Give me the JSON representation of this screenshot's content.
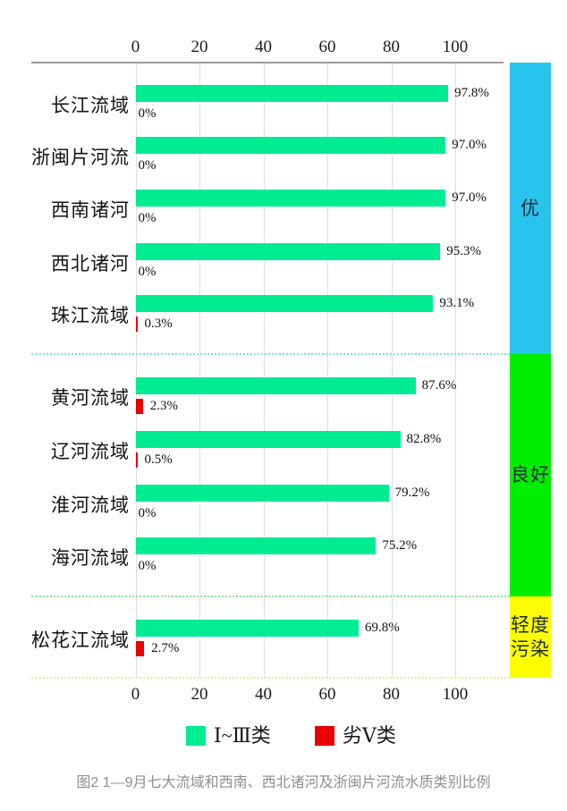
{
  "figure": {
    "caption": "图2  1—9月七大流域和西南、西北诸河及浙闽片河流水质类别比例"
  },
  "chart_data": {
    "type": "bar",
    "orientation": "horizontal",
    "title": "",
    "x_axis": {
      "ticks": [
        "0",
        "20",
        "40",
        "60",
        "80",
        "100"
      ],
      "tick_values": [
        0,
        20,
        40,
        60,
        80,
        100
      ],
      "range": [
        0,
        100
      ],
      "position": "top-and-bottom",
      "grid": true
    },
    "categories": [
      "长江流域",
      "浙闽片河流",
      "西南诸河",
      "西北诸河",
      "珠江流域",
      "黄河流域",
      "辽河流域",
      "淮河流域",
      "海河流域",
      "松花江流域"
    ],
    "series": [
      {
        "name": "Ⅰ~Ⅲ类",
        "color": "#00ec92",
        "values": [
          97.8,
          97.0,
          97.0,
          95.3,
          93.1,
          87.6,
          82.8,
          79.2,
          75.2,
          69.8
        ],
        "labels": [
          "97.8%",
          "97.0%",
          "97.0%",
          "95.3%",
          "93.1%",
          "87.6%",
          "82.8%",
          "79.2%",
          "75.2%",
          "69.8%"
        ]
      },
      {
        "name": "劣Ⅴ类",
        "color": "#e90000",
        "values": [
          0,
          0,
          0,
          0,
          0.3,
          2.3,
          0.5,
          0,
          0,
          2.7
        ],
        "labels": [
          "0%",
          "0%",
          "0%",
          "0%",
          "0.3%",
          "2.3%",
          "0.5%",
          "0%",
          "0%",
          "2.7%"
        ]
      }
    ],
    "quality_bands": [
      {
        "label": "优",
        "color": "#29c4ee",
        "separator_color": "#84dcec",
        "row_start": 0,
        "row_end": 4
      },
      {
        "label": "良好",
        "color": "#00ee00",
        "separator_color": "#8ce98c",
        "row_start": 5,
        "row_end": 8
      },
      {
        "label": "轻度污染",
        "color": "#fdfd00",
        "separator_color": "#ece98e",
        "row_start": 9,
        "row_end": 9
      }
    ],
    "legend": [
      {
        "label": "Ⅰ~Ⅲ类",
        "color": "#00ec92"
      },
      {
        "label": "劣Ⅴ类",
        "color": "#e90000"
      }
    ]
  }
}
